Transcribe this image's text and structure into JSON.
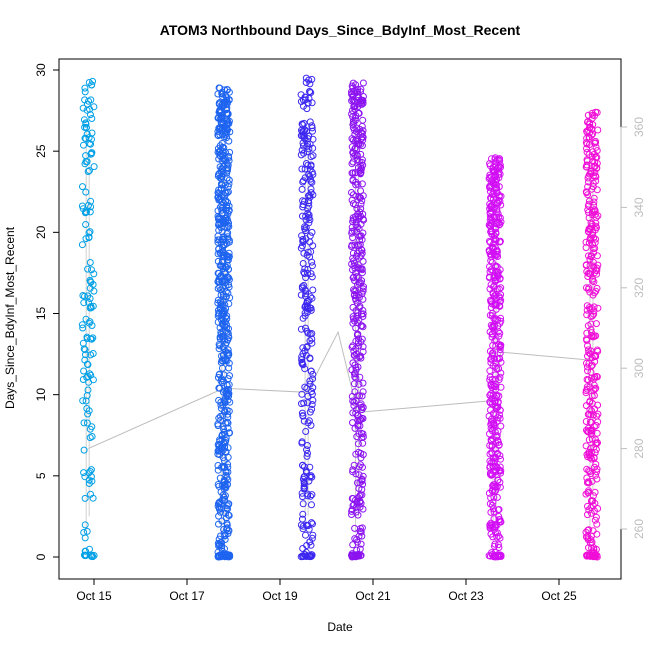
{
  "chart_data": {
    "type": "scatter",
    "title": "ATOM3 Northbound Days_Since_BdyInf_Most_Recent",
    "xlabel": "Date",
    "ylabel": "Days_Since_BdyInf_Most_Recent",
    "x_ticks": [
      "Oct 15",
      "Oct 17",
      "Oct 19",
      "Oct 21",
      "Oct 23",
      "Oct 25"
    ],
    "y_ticks": [
      0,
      5,
      10,
      15,
      20,
      25,
      30
    ],
    "ylim": [
      0,
      30
    ],
    "y2_ticks": [
      260,
      280,
      300,
      320,
      340,
      360
    ],
    "y2lim": [
      252,
      368
    ],
    "xlim_dates": [
      "2023-10-14",
      "2023-10-26"
    ],
    "grid": false,
    "legend": "none",
    "colors": {
      "axis": "#000000",
      "secondary_axis": "#bdbdbd",
      "trend_line": "#bdbdbd"
    },
    "clusters": [
      {
        "date": "2023-10-14 21:00",
        "color": "#00a0e6",
        "y_min": 0,
        "y_max": 29.3,
        "count": 150
      },
      {
        "date": "2023-10-17 19:00",
        "color": "#1e64f0",
        "y_min": 0,
        "y_max": 28.9,
        "count": 600
      },
      {
        "date": "2023-10-19 14:00",
        "color": "#3c28f0",
        "y_min": 0,
        "y_max": 29.5,
        "count": 280
      },
      {
        "date": "2023-10-20 16:00",
        "color": "#8c14f0",
        "y_min": 0,
        "y_max": 29.2,
        "count": 400
      },
      {
        "date": "2023-10-23 15:00",
        "color": "#d20ff5",
        "y_min": 0,
        "y_max": 24.6,
        "count": 450
      },
      {
        "date": "2023-10-25 17:00",
        "color": "#f00fd7",
        "y_min": 0,
        "y_max": 27.4,
        "count": 350
      }
    ],
    "trend_series": {
      "axis": "right",
      "points": [
        {
          "x": "2023-10-14 21:00",
          "y": 280
        },
        {
          "x": "2023-10-17 19:00",
          "y": 295
        },
        {
          "x": "2023-10-19 14:00",
          "y": 294
        },
        {
          "x": "2023-10-20 06:00",
          "y": 309
        },
        {
          "x": "2023-10-20 16:00",
          "y": 289
        },
        {
          "x": "2023-10-23 15:00",
          "y": 292
        },
        {
          "x": "2023-10-23 18:00",
          "y": 304
        },
        {
          "x": "2023-10-25 17:00",
          "y": 302
        }
      ]
    }
  }
}
